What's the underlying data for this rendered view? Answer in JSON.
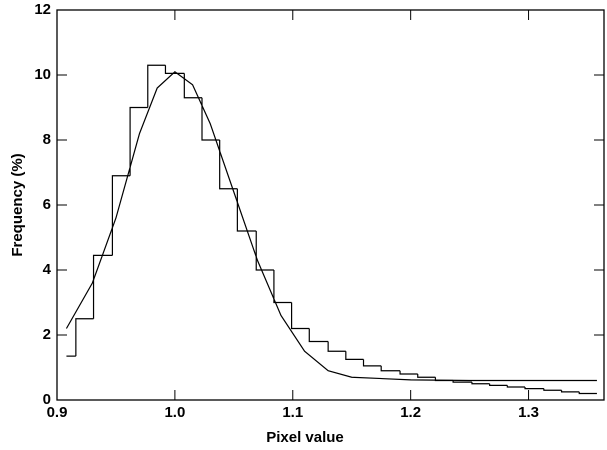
{
  "chart_data": {
    "type": "histogram",
    "xlabel": "Pixel value",
    "ylabel": "Frequency (%)",
    "bins": [
      0.908,
      0.916,
      0.931,
      0.947,
      0.962,
      0.977,
      0.992,
      1.008,
      1.023,
      1.038,
      1.053,
      1.069,
      1.084,
      1.099,
      1.114,
      1.13,
      1.145,
      1.16,
      1.175,
      1.191,
      1.206,
      1.221,
      1.236,
      1.252,
      1.267,
      1.282,
      1.297,
      1.313,
      1.328,
      1.343,
      1.358
    ],
    "values": [
      1.35,
      2.5,
      4.45,
      6.9,
      9.0,
      10.3,
      10.05,
      9.3,
      8.0,
      6.5,
      5.2,
      4.0,
      3.0,
      2.2,
      1.8,
      1.5,
      1.25,
      1.05,
      0.9,
      0.8,
      0.7,
      0.6,
      0.55,
      0.5,
      0.45,
      0.4,
      0.35,
      0.3,
      0.25,
      0.2
    ],
    "color": "#000000",
    "fit": {
      "type": "line",
      "color": "#000000",
      "x": [
        0.908,
        0.93,
        0.95,
        0.97,
        0.985,
        1.0,
        1.015,
        1.03,
        1.05,
        1.07,
        1.09,
        1.11,
        1.13,
        1.15,
        1.2,
        1.25,
        1.3,
        1.358
      ],
      "y": [
        2.2,
        3.6,
        5.6,
        8.2,
        9.6,
        10.1,
        9.7,
        8.5,
        6.4,
        4.3,
        2.6,
        1.5,
        0.9,
        0.7,
        0.62,
        0.6,
        0.6,
        0.6
      ]
    },
    "xlim": [
      0.9,
      1.364
    ],
    "ylim": [
      0,
      12
    ],
    "xticks": [
      0.9,
      {
        "value": 1,
        "label": "1.0"
      },
      1.1,
      1.2,
      1.3
    ],
    "yticks": [
      0,
      2,
      4,
      6,
      8,
      10,
      12
    ]
  }
}
